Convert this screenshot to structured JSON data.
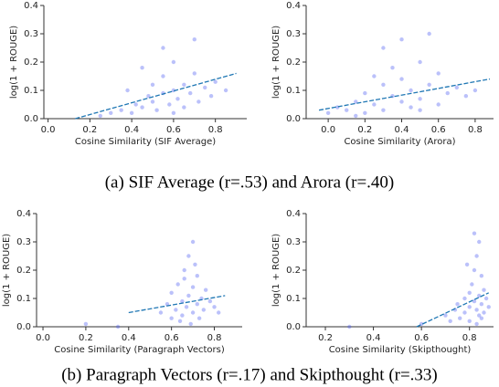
{
  "captions": [
    "(a) SIF Average (r=.53) and Arora (r=.40)",
    "(b) Paragraph Vectors (r=.17) and Skipthought (r=.33)"
  ],
  "chart_data": [
    {
      "type": "scatter",
      "xlabel": "Cosine Similarity (SIF Average)",
      "ylabel": "log(1 + ROUGE)",
      "xlim": [
        -0.02,
        0.95
      ],
      "ylim": [
        0,
        0.4
      ],
      "xticks": [
        {
          "value": 0,
          "label": "0.0"
        },
        0.2,
        0.4,
        0.6,
        0.8
      ],
      "yticks": [
        {
          "value": 0,
          "label": "0.0"
        },
        0.1,
        0.2,
        0.3,
        0.4
      ],
      "points": {
        "color": "#3b4cf0",
        "x": [
          0.25,
          0.3,
          0.35,
          0.4,
          0.42,
          0.45,
          0.48,
          0.5,
          0.5,
          0.52,
          0.55,
          0.55,
          0.58,
          0.6,
          0.6,
          0.62,
          0.65,
          0.65,
          0.68,
          0.7,
          0.72,
          0.75,
          0.78,
          0.8,
          0.45,
          0.55,
          0.6,
          0.38,
          0.7,
          0.85
        ],
        "y": [
          0.01,
          0.02,
          0.03,
          0.02,
          0.05,
          0.04,
          0.08,
          0.06,
          0.12,
          0.03,
          0.09,
          0.15,
          0.05,
          0.1,
          0.2,
          0.07,
          0.12,
          0.04,
          0.09,
          0.16,
          0.06,
          0.11,
          0.08,
          0.13,
          0.18,
          0.25,
          0.02,
          0.1,
          0.28,
          0.1
        ]
      },
      "fit": {
        "color": "#1f77b4",
        "x": [
          0.13,
          0.9
        ],
        "y": [
          0,
          0.16
        ]
      }
    },
    {
      "type": "scatter",
      "xlabel": "Cosine Similarity (Arora)",
      "ylabel": "log(1 + ROUGE)",
      "xlim": [
        -0.12,
        0.9
      ],
      "ylim": [
        0,
        0.4
      ],
      "xticks": [
        {
          "value": 0,
          "label": "0.0"
        },
        0.2,
        0.4,
        0.6,
        0.8
      ],
      "yticks": [
        {
          "value": 0,
          "label": "0.0"
        },
        0.1,
        0.2,
        0.3,
        0.4
      ],
      "points": {
        "color": "#3b4cf0",
        "x": [
          0.0,
          0.05,
          0.1,
          0.15,
          0.2,
          0.2,
          0.25,
          0.3,
          0.3,
          0.35,
          0.35,
          0.4,
          0.4,
          0.45,
          0.45,
          0.5,
          0.5,
          0.55,
          0.6,
          0.6,
          0.65,
          0.7,
          0.75,
          0.3,
          0.4,
          0.25,
          0.5,
          0.15,
          0.55,
          0.8
        ],
        "y": [
          0.02,
          0.04,
          0.03,
          0.06,
          0.02,
          0.09,
          0.05,
          0.12,
          0.03,
          0.08,
          0.18,
          0.06,
          0.14,
          0.04,
          0.1,
          0.2,
          0.07,
          0.12,
          0.05,
          0.16,
          0.09,
          0.11,
          0.08,
          0.25,
          0.28,
          0.15,
          0.03,
          0.01,
          0.3,
          0.1
        ]
      },
      "fit": {
        "color": "#1f77b4",
        "x": [
          -0.05,
          0.88
        ],
        "y": [
          0.03,
          0.14
        ]
      }
    },
    {
      "type": "scatter",
      "xlabel": "Cosine Similarity (Paragraph Vectors)",
      "ylabel": "log(1 + ROUGE)",
      "xlim": [
        -0.03,
        0.93
      ],
      "ylim": [
        0,
        0.4
      ],
      "xticks": [
        {
          "value": 0,
          "label": "0.0"
        },
        0.2,
        0.4,
        0.6,
        0.8
      ],
      "yticks": [
        {
          "value": 0,
          "label": "0.0"
        },
        0.1,
        0.2,
        0.3,
        0.4
      ],
      "points": {
        "color": "#3b4cf0",
        "x": [
          0.55,
          0.58,
          0.6,
          0.6,
          0.62,
          0.63,
          0.65,
          0.65,
          0.66,
          0.67,
          0.68,
          0.68,
          0.7,
          0.7,
          0.7,
          0.72,
          0.72,
          0.74,
          0.75,
          0.76,
          0.78,
          0.8,
          0.82,
          0.64,
          0.69,
          0.71,
          0.66,
          0.73,
          0.2,
          0.35
        ],
        "y": [
          0.05,
          0.08,
          0.03,
          0.12,
          0.06,
          0.15,
          0.09,
          0.04,
          0.2,
          0.07,
          0.11,
          0.25,
          0.05,
          0.14,
          0.3,
          0.08,
          0.18,
          0.1,
          0.06,
          0.13,
          0.09,
          0.07,
          0.05,
          0.02,
          0.01,
          0.22,
          0.17,
          0.03,
          0.01,
          0.0
        ]
      },
      "fit": {
        "color": "#1f77b4",
        "x": [
          0.4,
          0.85
        ],
        "y": [
          0.05,
          0.11
        ]
      }
    },
    {
      "type": "scatter",
      "xlabel": "Cosine Similarity (Skipthought)",
      "ylabel": "log(1 + ROUGE)",
      "xlim": [
        0.12,
        0.9
      ],
      "ylim": [
        0,
        0.4
      ],
      "xticks": [
        0.2,
        0.4,
        0.6,
        0.8
      ],
      "yticks": [
        {
          "value": 0,
          "label": "0.0"
        },
        0.1,
        0.2,
        0.3,
        0.4
      ],
      "points": {
        "color": "#3b4cf0",
        "x": [
          0.7,
          0.72,
          0.74,
          0.75,
          0.76,
          0.78,
          0.78,
          0.8,
          0.8,
          0.81,
          0.82,
          0.82,
          0.83,
          0.83,
          0.84,
          0.84,
          0.85,
          0.85,
          0.86,
          0.86,
          0.87,
          0.88,
          0.8,
          0.83,
          0.85,
          0.79,
          0.82,
          0.6,
          0.3,
          0.84
        ],
        "y": [
          0.04,
          0.02,
          0.06,
          0.08,
          0.03,
          0.1,
          0.05,
          0.12,
          0.07,
          0.15,
          0.09,
          0.2,
          0.06,
          0.25,
          0.11,
          0.3,
          0.08,
          0.18,
          0.13,
          0.05,
          0.1,
          0.07,
          0.02,
          0.01,
          0.03,
          0.22,
          0.33,
          0.01,
          0.0,
          0.04
        ]
      },
      "fit": {
        "color": "#1f77b4",
        "x": [
          0.58,
          0.88
        ],
        "y": [
          0,
          0.12
        ]
      }
    }
  ]
}
